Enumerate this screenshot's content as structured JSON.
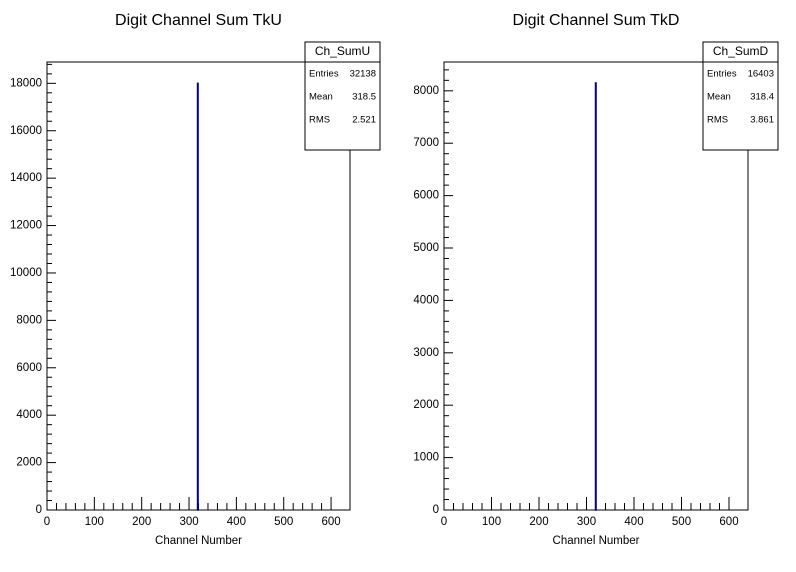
{
  "chart_data": [
    {
      "type": "histogram",
      "title": "Digit Channel Sum TkU",
      "x_label": "Channel Number",
      "bins": [
        318,
        319
      ],
      "values": [
        18000
      ],
      "color": "#000080",
      "xlim": [
        0,
        640
      ],
      "xticks": [
        0,
        100,
        200,
        300,
        400,
        500,
        600
      ],
      "ylim": [
        0,
        18900
      ],
      "yticks": [
        0,
        2000,
        4000,
        6000,
        8000,
        10000,
        12000,
        14000,
        16000,
        18000
      ],
      "stats": {
        "title": "Ch_SumU",
        "rows": [
          [
            "Entries",
            32138
          ],
          [
            "Mean",
            318.5
          ],
          [
            "RMS",
            2.521
          ]
        ]
      }
    },
    {
      "type": "histogram",
      "title": "Digit Channel Sum TkD",
      "x_label": "Channel Number",
      "bins": [
        319,
        320
      ],
      "values": [
        8150
      ],
      "color": "#000080",
      "xlim": [
        0,
        640
      ],
      "xticks": [
        0,
        100,
        200,
        300,
        400,
        500,
        600
      ],
      "ylim": [
        0,
        8550
      ],
      "yticks": [
        0,
        1000,
        2000,
        3000,
        4000,
        5000,
        6000,
        7000,
        8000
      ],
      "stats": {
        "title": "Ch_SumD",
        "rows": [
          [
            "Entries",
            16403
          ],
          [
            "Mean",
            318.4
          ],
          [
            "RMS",
            3.861
          ]
        ]
      }
    }
  ]
}
